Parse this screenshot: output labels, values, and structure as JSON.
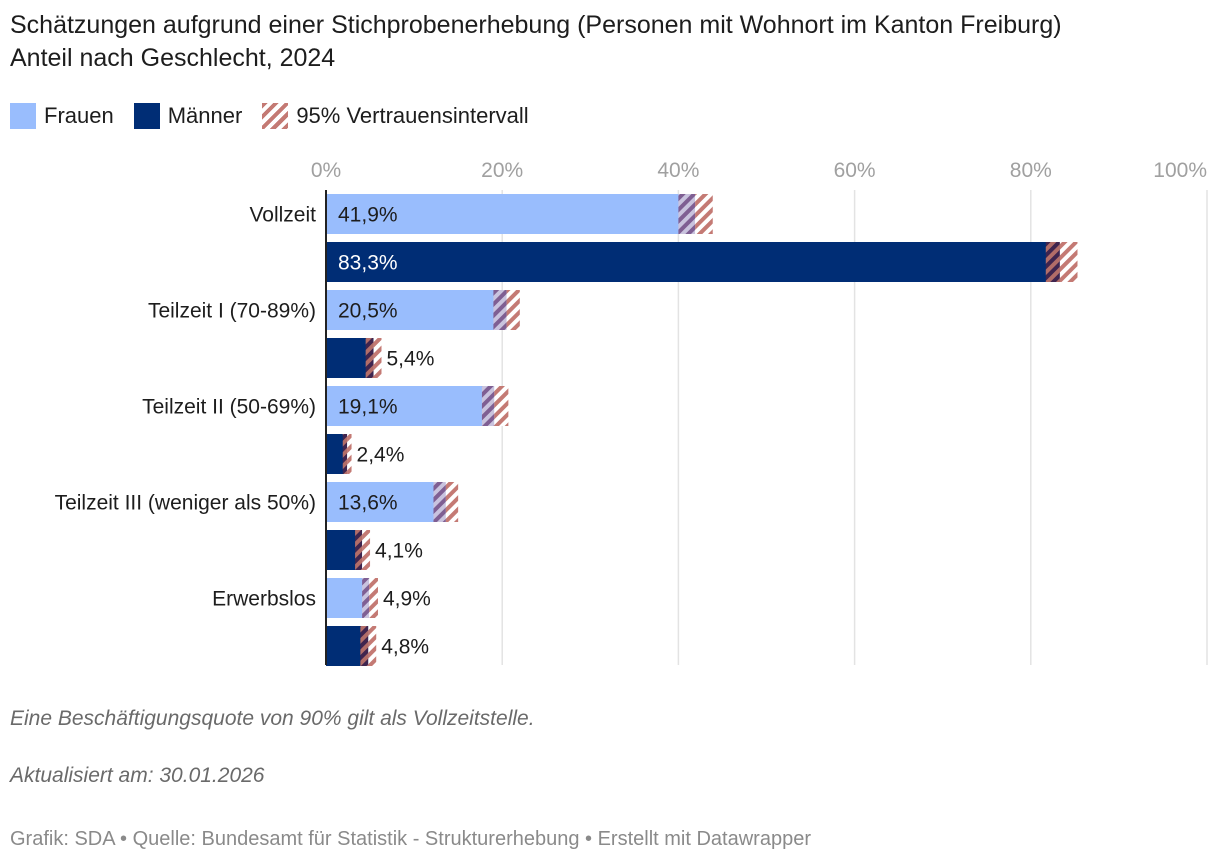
{
  "title_line1": "Schätzungen aufgrund einer Stichprobenerhebung (Personen mit Wohnort im Kanton Freiburg)",
  "title_line2": "Anteil nach Geschlecht, 2024",
  "legend": {
    "frauen": "Frauen",
    "maenner": "Männer",
    "ci": "95% Vertrauensintervall"
  },
  "colors": {
    "frauen": "#99bdfd",
    "maenner": "#002d75",
    "ci": "#c47a74",
    "grid": "#e3e3e3",
    "tick": "#a0a0a0"
  },
  "chart_data": {
    "type": "bar",
    "orientation": "horizontal",
    "xlim": [
      0,
      100
    ],
    "ticks": [
      "0%",
      "20%",
      "40%",
      "60%",
      "80%",
      "100%"
    ],
    "tick_values": [
      0,
      20,
      40,
      60,
      80,
      100
    ],
    "categories": [
      "Vollzeit",
      "Teilzeit I (70-89%)",
      "Teilzeit II (50-69%)",
      "Teilzeit III (weniger als 50%)",
      "Erwerbslos"
    ],
    "series": [
      {
        "name": "Frauen",
        "values": [
          41.9,
          20.5,
          19.1,
          13.6,
          4.9
        ],
        "labels": [
          "41,9%",
          "20,5%",
          "19,1%",
          "13,6%",
          "4,9%"
        ],
        "ci_low": [
          40.0,
          19.0,
          17.7,
          12.2,
          4.1
        ],
        "ci_high": [
          43.9,
          22.0,
          20.7,
          15.0,
          5.9
        ]
      },
      {
        "name": "Männer",
        "values": [
          83.3,
          5.4,
          2.4,
          4.1,
          4.8
        ],
        "labels": [
          "83,3%",
          "5,4%",
          "2,4%",
          "4,1%",
          "4,8%"
        ],
        "ci_low": [
          81.7,
          4.5,
          1.9,
          3.3,
          3.9
        ],
        "ci_high": [
          85.3,
          6.3,
          2.9,
          5.0,
          5.7
        ]
      }
    ]
  },
  "notes": {
    "note1": "Eine Beschäftigungsquote von 90% gilt als Vollzeitstelle.",
    "note2": "Aktualisiert am: 30.01.2026"
  },
  "source": "Grafik: SDA • Quelle: Bundesamt für Statistik - Strukturerhebung • Erstellt mit Datawrapper"
}
